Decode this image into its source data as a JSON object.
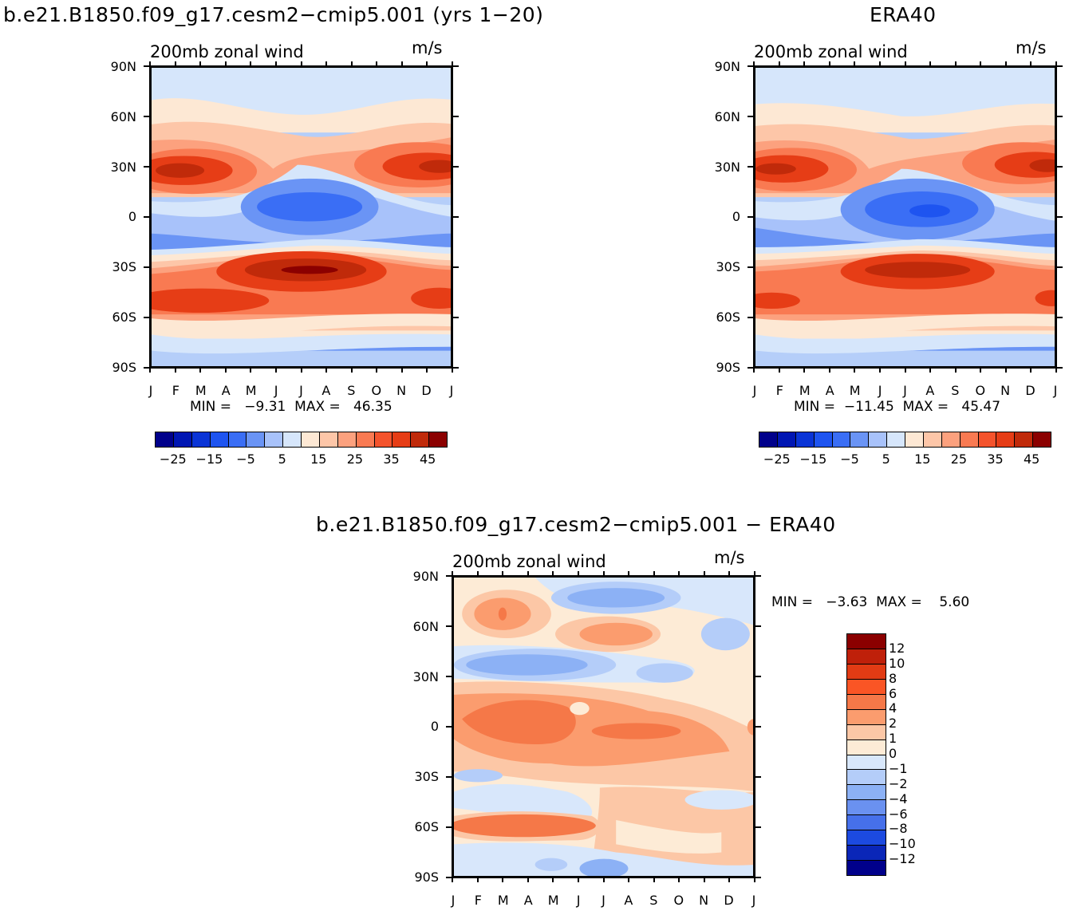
{
  "panels": {
    "model": {
      "title": "b.e21.B1850.f09_g17.cesm2−cmip5.001 (yrs 1−20)",
      "field": "200mb zonal wind",
      "units": "m/s",
      "stats": "MIN =   −9.31  MAX =   46.35"
    },
    "obs": {
      "title": "ERA40",
      "field": "200mb zonal wind",
      "units": "m/s",
      "stats": "MIN =  −11.45  MAX =   45.47"
    },
    "diff": {
      "title": "b.e21.B1850.f09_g17.cesm2−cmip5.001 − ERA40",
      "field": "200mb zonal wind",
      "units": "m/s",
      "stats": "MIN =   −3.63  MAX =    5.60"
    }
  },
  "axes": {
    "lat_labels": [
      "90N",
      "60N",
      "30N",
      "0",
      "30S",
      "60S",
      "90S"
    ],
    "month_labels": [
      "J",
      "F",
      "M",
      "A",
      "M",
      "J",
      "J",
      "A",
      "S",
      "O",
      "N",
      "D",
      "J"
    ]
  },
  "colorbars": {
    "abs_labels": [
      "−25",
      "−15",
      "−5",
      "5",
      "15",
      "25",
      "35",
      "45"
    ],
    "diff_labels": [
      "12",
      "10",
      "8",
      "6",
      "4",
      "2",
      "1",
      "0",
      "−1",
      "−2",
      "−4",
      "−6",
      "−8",
      "−10",
      "−12"
    ]
  },
  "chart_data": [
    {
      "type": "heatmap",
      "title": "b.e21.B1850.f09_g17.cesm2−cmip5.001 (yrs 1−20)",
      "subtitle": "200mb zonal wind",
      "units": "m/s",
      "x": [
        "J",
        "F",
        "M",
        "A",
        "M",
        "J",
        "J",
        "A",
        "S",
        "O",
        "N",
        "D",
        "J"
      ],
      "y": [
        "90N",
        "60N",
        "30N",
        "0",
        "30S",
        "60S",
        "90S"
      ],
      "min": -9.31,
      "max": 46.35,
      "levels": [
        -30,
        -25,
        -20,
        -15,
        -10,
        -5,
        0,
        5,
        10,
        15,
        20,
        25,
        30,
        35,
        40,
        45,
        50
      ]
    },
    {
      "type": "heatmap",
      "title": "ERA40",
      "subtitle": "200mb zonal wind",
      "units": "m/s",
      "x": [
        "J",
        "F",
        "M",
        "A",
        "M",
        "J",
        "J",
        "A",
        "S",
        "O",
        "N",
        "D",
        "J"
      ],
      "y": [
        "90N",
        "60N",
        "30N",
        "0",
        "30S",
        "60S",
        "90S"
      ],
      "min": -11.45,
      "max": 45.47,
      "levels": [
        -30,
        -25,
        -20,
        -15,
        -10,
        -5,
        0,
        5,
        10,
        15,
        20,
        25,
        30,
        35,
        40,
        45,
        50
      ]
    },
    {
      "type": "heatmap",
      "title": "b.e21.B1850.f09_g17.cesm2−cmip5.001 − ERA40",
      "subtitle": "200mb zonal wind",
      "units": "m/s",
      "x": [
        "J",
        "F",
        "M",
        "A",
        "M",
        "J",
        "J",
        "A",
        "S",
        "O",
        "N",
        "D",
        "J"
      ],
      "y": [
        "90N",
        "60N",
        "30N",
        "0",
        "30S",
        "60S",
        "90S"
      ],
      "min": -3.63,
      "max": 5.6,
      "levels": [
        -12,
        -10,
        -8,
        -6,
        -4,
        -2,
        -1,
        0,
        1,
        2,
        4,
        6,
        8,
        10,
        12
      ]
    }
  ],
  "colors": {
    "abs": [
      "#00008b",
      "#0016b3",
      "#0a34d6",
      "#1e54f0",
      "#3a6ef5",
      "#6a94f5",
      "#a8c2fa",
      "#d6e6fb",
      "#fde8d4",
      "#fdc6a8",
      "#fca17e",
      "#f97a52",
      "#f4532c",
      "#e63d16",
      "#c02a0a",
      "#8b0000"
    ],
    "diff": [
      "#8b0000",
      "#bf200a",
      "#e23b14",
      "#fa5525",
      "#f57848",
      "#fb9c6e",
      "#fcc7a6",
      "#fdebd6",
      "#d8e7fb",
      "#b4cdf9",
      "#8cb1f5",
      "#6a91f0",
      "#4670ea",
      "#1c4ae0",
      "#0a26b8",
      "#00008b"
    ]
  }
}
